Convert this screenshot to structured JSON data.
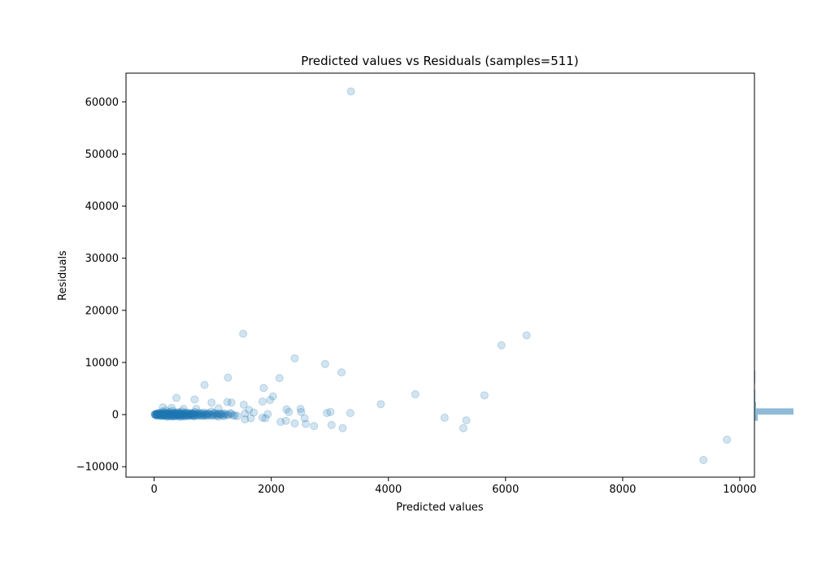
{
  "chart_data": {
    "type": "scatter",
    "title": "Predicted values vs Residuals (samples=511)",
    "xlabel": "Predicted values",
    "ylabel": "Residuals",
    "xlim": [
      -480,
      10250
    ],
    "ylim": [
      -12000,
      65500
    ],
    "xticks": [
      0,
      2000,
      4000,
      6000,
      8000,
      10000
    ],
    "yticks": [
      -10000,
      0,
      10000,
      20000,
      30000,
      40000,
      50000,
      60000
    ],
    "xtick_labels": [
      "0",
      "2000",
      "4000",
      "6000",
      "8000",
      "10000"
    ],
    "ytick_labels": [
      "−10000",
      "0",
      "10000",
      "20000",
      "30000",
      "40000",
      "50000",
      "60000"
    ],
    "grid": false,
    "point_color": "#1f77b4",
    "point_alpha": 0.2,
    "side_histogram_color": "#1f77b4",
    "series": [
      {
        "points": [
          [
            3360,
            62000
          ],
          [
            1520,
            15500
          ],
          [
            6360,
            15200
          ],
          [
            5930,
            13300
          ],
          [
            2400,
            10800
          ],
          [
            2920,
            9700
          ],
          [
            3200,
            8100
          ],
          [
            1260,
            7100
          ],
          [
            2140,
            7000
          ],
          [
            860,
            5700
          ],
          [
            1870,
            5100
          ],
          [
            4460,
            3900
          ],
          [
            5640,
            3700
          ],
          [
            2030,
            3500
          ],
          [
            380,
            3200
          ],
          [
            690,
            2900
          ],
          [
            1980,
            2800
          ],
          [
            1850,
            2500
          ],
          [
            1250,
            2400
          ],
          [
            1320,
            2300
          ],
          [
            980,
            2300
          ],
          [
            3870,
            2000
          ],
          [
            1530,
            1900
          ],
          [
            2260,
            1000
          ],
          [
            2500,
            1100
          ],
          [
            150,
            1400
          ],
          [
            300,
            1300
          ],
          [
            500,
            1100
          ],
          [
            720,
            1100
          ],
          [
            1100,
            1200
          ],
          [
            1620,
            900
          ],
          [
            2300,
            500
          ],
          [
            2510,
            500
          ],
          [
            2950,
            300
          ],
          [
            3010,
            500
          ],
          [
            3350,
            300
          ],
          [
            1700,
            400
          ],
          [
            1550,
            200
          ],
          [
            1940,
            100
          ],
          [
            1420,
            -300
          ],
          [
            1550,
            -900
          ],
          [
            1650,
            -700
          ],
          [
            1850,
            -600
          ],
          [
            1900,
            -700
          ],
          [
            2160,
            -1400
          ],
          [
            2250,
            -1200
          ],
          [
            2400,
            -1700
          ],
          [
            2570,
            -700
          ],
          [
            2590,
            -1800
          ],
          [
            2730,
            -2200
          ],
          [
            3030,
            -2000
          ],
          [
            3220,
            -2600
          ],
          [
            4960,
            -600
          ],
          [
            5330,
            -1100
          ],
          [
            5280,
            -2600
          ],
          [
            9380,
            -8700
          ],
          [
            9780,
            -4800
          ],
          [
            10,
            0
          ],
          [
            20,
            100
          ],
          [
            30,
            -100
          ],
          [
            40,
            200
          ],
          [
            50,
            -200
          ],
          [
            60,
            50
          ],
          [
            70,
            300
          ],
          [
            80,
            -50
          ],
          [
            90,
            150
          ],
          [
            100,
            400
          ],
          [
            110,
            -300
          ],
          [
            120,
            0
          ],
          [
            130,
            250
          ],
          [
            140,
            -150
          ],
          [
            150,
            600
          ],
          [
            160,
            100
          ],
          [
            170,
            -250
          ],
          [
            180,
            350
          ],
          [
            190,
            -100
          ],
          [
            200,
            800
          ],
          [
            210,
            200
          ],
          [
            220,
            -400
          ],
          [
            230,
            50
          ],
          [
            240,
            300
          ],
          [
            250,
            -200
          ],
          [
            260,
            500
          ],
          [
            270,
            -50
          ],
          [
            280,
            150
          ],
          [
            290,
            -350
          ],
          [
            300,
            250
          ],
          [
            310,
            700
          ],
          [
            320,
            -150
          ],
          [
            330,
            100
          ],
          [
            340,
            -300
          ],
          [
            350,
            400
          ],
          [
            360,
            0
          ],
          [
            370,
            -250
          ],
          [
            380,
            300
          ],
          [
            390,
            150
          ],
          [
            400,
            -100
          ],
          [
            410,
            500
          ],
          [
            420,
            -200
          ],
          [
            430,
            50
          ],
          [
            440,
            350
          ],
          [
            450,
            -450
          ],
          [
            460,
            200
          ],
          [
            470,
            -100
          ],
          [
            480,
            600
          ],
          [
            490,
            0
          ],
          [
            500,
            -300
          ],
          [
            520,
            250
          ],
          [
            540,
            -150
          ],
          [
            560,
            400
          ],
          [
            580,
            -250
          ],
          [
            600,
            100
          ],
          [
            620,
            300
          ],
          [
            640,
            -100
          ],
          [
            660,
            200
          ],
          [
            680,
            -300
          ],
          [
            700,
            500
          ],
          [
            720,
            0
          ],
          [
            740,
            -200
          ],
          [
            760,
            350
          ],
          [
            780,
            100
          ],
          [
            800,
            -250
          ],
          [
            820,
            200
          ],
          [
            840,
            -100
          ],
          [
            860,
            400
          ],
          [
            880,
            50
          ],
          [
            900,
            -300
          ],
          [
            920,
            250
          ],
          [
            950,
            0
          ],
          [
            980,
            600
          ],
          [
            1000,
            -200
          ],
          [
            1020,
            300
          ],
          [
            1050,
            -100
          ],
          [
            1080,
            150
          ],
          [
            1100,
            -400
          ],
          [
            1120,
            200
          ],
          [
            1150,
            0
          ],
          [
            1180,
            -300
          ],
          [
            1200,
            250
          ],
          [
            1250,
            -100
          ],
          [
            1300,
            300
          ],
          [
            1350,
            -200
          ],
          [
            15,
            50
          ],
          [
            25,
            -50
          ],
          [
            35,
            80
          ],
          [
            45,
            -80
          ],
          [
            55,
            120
          ],
          [
            65,
            -120
          ],
          [
            75,
            30
          ],
          [
            85,
            -30
          ],
          [
            95,
            180
          ],
          [
            105,
            -180
          ],
          [
            115,
            60
          ],
          [
            125,
            -60
          ],
          [
            135,
            220
          ],
          [
            145,
            -220
          ],
          [
            155,
            90
          ],
          [
            165,
            -90
          ],
          [
            175,
            270
          ],
          [
            185,
            -270
          ],
          [
            195,
            40
          ],
          [
            205,
            -40
          ],
          [
            215,
            160
          ],
          [
            225,
            -160
          ],
          [
            235,
            330
          ],
          [
            245,
            -330
          ],
          [
            255,
            70
          ],
          [
            265,
            -70
          ],
          [
            275,
            210
          ],
          [
            285,
            -210
          ],
          [
            295,
            120
          ],
          [
            305,
            -120
          ],
          [
            315,
            380
          ],
          [
            325,
            -380
          ],
          [
            335,
            10
          ],
          [
            345,
            -10
          ],
          [
            355,
            230
          ],
          [
            365,
            -230
          ],
          [
            375,
            90
          ],
          [
            385,
            -90
          ],
          [
            395,
            310
          ],
          [
            405,
            -310
          ],
          [
            415,
            140
          ],
          [
            425,
            -140
          ],
          [
            435,
            260
          ],
          [
            445,
            -260
          ],
          [
            455,
            30
          ],
          [
            465,
            -30
          ],
          [
            475,
            190
          ],
          [
            485,
            -190
          ],
          [
            495,
            80
          ],
          [
            505,
            -80
          ],
          [
            515,
            340
          ],
          [
            525,
            -340
          ],
          [
            535,
            120
          ],
          [
            545,
            -120
          ],
          [
            555,
            60
          ],
          [
            565,
            -60
          ],
          [
            575,
            280
          ],
          [
            585,
            -280
          ],
          [
            595,
            160
          ],
          [
            605,
            -160
          ],
          [
            615,
            20
          ],
          [
            625,
            -20
          ],
          [
            635,
            240
          ],
          [
            645,
            -240
          ],
          [
            655,
            100
          ],
          [
            665,
            -100
          ],
          [
            675,
            300
          ],
          [
            685,
            -300
          ],
          [
            695,
            50
          ],
          [
            705,
            -50
          ],
          [
            730,
            180
          ],
          [
            750,
            -180
          ],
          [
            770,
            70
          ],
          [
            790,
            -70
          ],
          [
            810,
            260
          ],
          [
            830,
            -260
          ],
          [
            850,
            140
          ],
          [
            870,
            -140
          ],
          [
            890,
            30
          ],
          [
            910,
            -30
          ],
          [
            930,
            210
          ],
          [
            960,
            -210
          ],
          [
            990,
            90
          ],
          [
            1010,
            -90
          ],
          [
            1040,
            240
          ],
          [
            1070,
            -240
          ],
          [
            1090,
            60
          ],
          [
            1130,
            -60
          ],
          [
            1160,
            170
          ],
          [
            1190,
            -170
          ],
          [
            1220,
            40
          ],
          [
            1270,
            -40
          ],
          [
            1320,
            130
          ],
          [
            1380,
            -130
          ]
        ]
      }
    ],
    "side_histogram": {
      "bins": [
        {
          "y0": -1200,
          "y1": 0,
          "count": 4
        },
        {
          "y0": 0,
          "y1": 1200,
          "count": 48
        },
        {
          "y0": 1200,
          "y1": 2400,
          "count": 2
        },
        {
          "y0": 2400,
          "y1": 3600,
          "count": 1
        },
        {
          "y0": 3600,
          "y1": 4800,
          "count": 1
        },
        {
          "y0": 6000,
          "y1": 7200,
          "count": 1
        },
        {
          "y0": 7200,
          "y1": 8400,
          "count": 1
        }
      ]
    }
  }
}
